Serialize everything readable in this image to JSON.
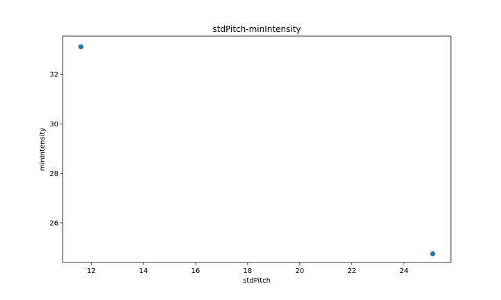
{
  "chart_data": {
    "type": "scatter",
    "title": "stdPitch-minIntensity",
    "xlabel": "stdPitch",
    "ylabel": "minIntensity",
    "xlim": [
      10.9,
      25.8
    ],
    "ylim": [
      24.4,
      33.55
    ],
    "xticks": [
      12,
      14,
      16,
      18,
      20,
      22,
      24
    ],
    "yticks": [
      26,
      28,
      30,
      32
    ],
    "series": [
      {
        "name": "points",
        "color": "#1f77b4",
        "points": [
          {
            "x": 11.6,
            "y": 33.12
          },
          {
            "x": 25.1,
            "y": 24.75
          }
        ]
      }
    ]
  }
}
